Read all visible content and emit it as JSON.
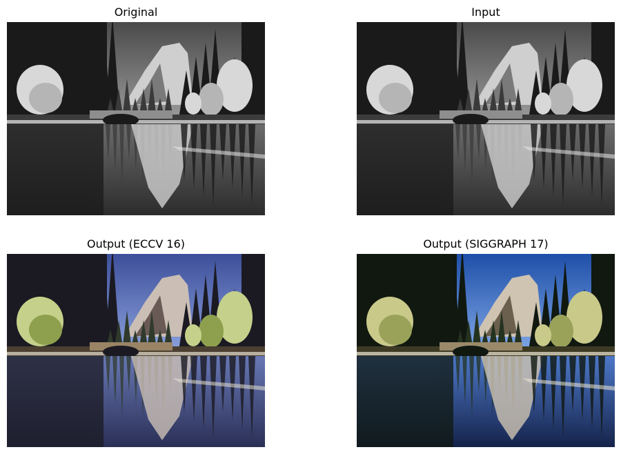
{
  "panels": [
    {
      "title": "Original",
      "variant": "grayscale"
    },
    {
      "title": "Input",
      "variant": "grayscale"
    },
    {
      "title": "Output (ECCV 16)",
      "variant": "color-purple"
    },
    {
      "title": "Output (SIGGRAPH 17)",
      "variant": "color-blue"
    }
  ],
  "palettes": {
    "grayscale": {
      "sky_top": "#4a4a4a",
      "sky_bottom": "#9a9a9a",
      "mountain": "#cfcfcf",
      "mountain_shadow": "#7a7a7a",
      "trees_dark": "#1a1a1a",
      "trees_mid": "#3a3a3a",
      "tree_light": "#d8d8d8",
      "tree_light2": "#b5b5b5",
      "bridge": "#8e8e8e",
      "snow": "#e8e8e8",
      "water_top": "#6b6b6b",
      "water_bottom": "#2c2c2c",
      "ground": "#3c3c3c"
    },
    "color-purple": {
      "sky_top": "#3d4f9a",
      "sky_bottom": "#8aa0dc",
      "mountain": "#cbbfb5",
      "mountain_shadow": "#6a5a55",
      "trees_dark": "#1b1a22",
      "trees_mid": "#2f3a2c",
      "tree_light": "#c5d08a",
      "tree_light2": "#8ea04e",
      "bridge": "#9a8466",
      "snow": "#e6e0cf",
      "water_top": "#6878b5",
      "water_bottom": "#2a2f55",
      "ground": "#4a3f30"
    },
    "color-blue": {
      "sky_top": "#1e4fa8",
      "sky_bottom": "#7fa6e6",
      "mountain": "#cfc4b2",
      "mountain_shadow": "#6b5f4e",
      "trees_dark": "#101810",
      "trees_mid": "#243220",
      "tree_light": "#c9c98a",
      "tree_light2": "#9aa25a",
      "bridge": "#9a8a6a",
      "snow": "#efe9d6",
      "water_top": "#4d78c8",
      "water_bottom": "#15234a",
      "ground": "#3d3a24"
    }
  }
}
